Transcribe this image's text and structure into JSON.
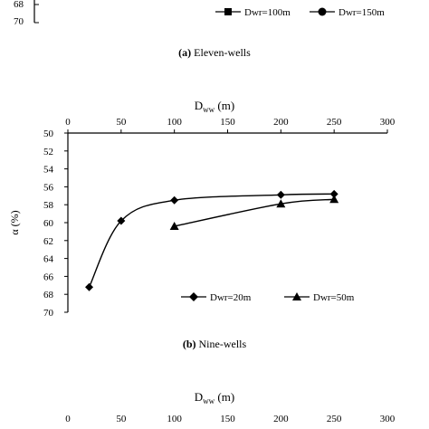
{
  "top_fragment": {
    "ytick_labels": [
      "68",
      "70"
    ],
    "legend": [
      "Dwr=100m",
      "Dwr=150m"
    ],
    "caption_letter": "(a)",
    "caption_text": " Eleven-wells"
  },
  "chart_data": [
    {
      "type": "line",
      "panel": "b",
      "xlabel_main": "D",
      "xlabel_sub": "ww",
      "xlabel_unit": " (m)",
      "ylabel": "α (%)",
      "x_axis_position": "top",
      "y_axis_inverted": true,
      "xlim": [
        0,
        300
      ],
      "ylim": [
        50,
        70
      ],
      "xticks": [
        0,
        50,
        100,
        150,
        200,
        250,
        300
      ],
      "yticks": [
        50,
        52,
        54,
        56,
        58,
        60,
        62,
        64,
        66,
        68,
        70
      ],
      "grid": false,
      "legend_position": "bottom-right",
      "series": [
        {
          "name": "Dwr=20m",
          "marker": "diamond",
          "x": [
            20,
            50,
            100,
            200,
            250
          ],
          "y": [
            67.2,
            59.8,
            57.5,
            56.9,
            56.8
          ]
        },
        {
          "name": "Dwr=50m",
          "marker": "triangle",
          "x": [
            100,
            200,
            250
          ],
          "y": [
            60.4,
            57.9,
            57.4
          ]
        }
      ],
      "caption_letter": "(b)",
      "caption_text": " Nine-wells"
    }
  ],
  "bottom_fragment": {
    "xlabel_main": "D",
    "xlabel_sub": "ww",
    "xlabel_unit": " (m)",
    "xticks": [
      "0",
      "50",
      "100",
      "150",
      "200",
      "250",
      "300"
    ]
  }
}
